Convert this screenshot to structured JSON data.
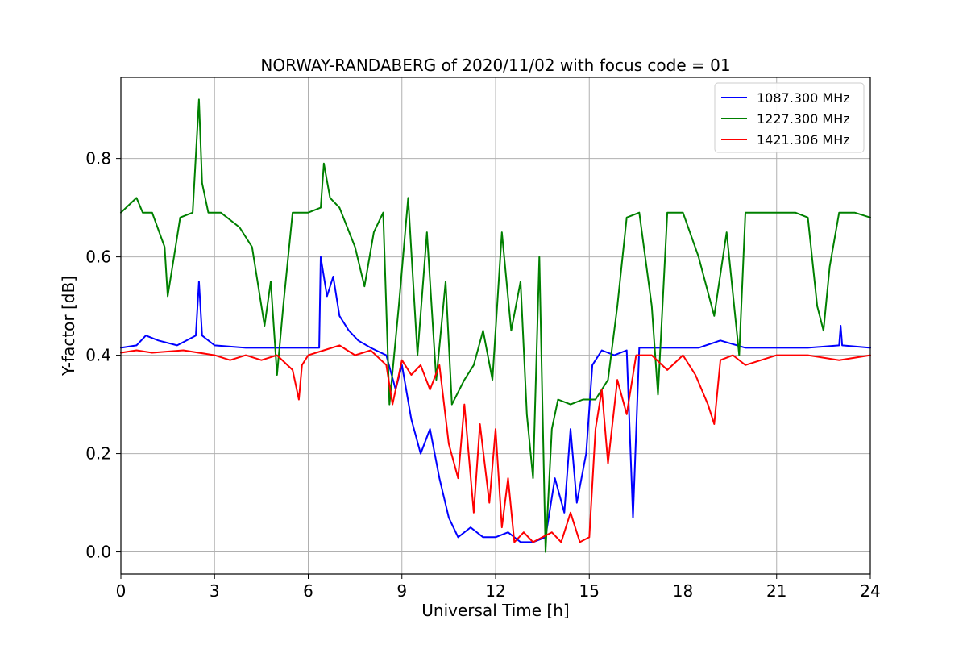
{
  "chart_data": {
    "type": "line",
    "title": "NORWAY-RANDABERG of 2020/11/02 with focus code = 01",
    "xlabel": "Universal Time [h]",
    "ylabel": "Y-factor [dB]",
    "xlim": [
      0,
      24
    ],
    "ylim": [
      -0.045,
      0.965
    ],
    "xticks": [
      0,
      3,
      6,
      9,
      12,
      15,
      18,
      21,
      24
    ],
    "xtick_labels": [
      "0",
      "3",
      "6",
      "9",
      "12",
      "15",
      "18",
      "21",
      "24"
    ],
    "yticks": [
      0.0,
      0.2,
      0.4,
      0.6,
      0.8
    ],
    "ytick_labels": [
      "0.0",
      "0.2",
      "0.4",
      "0.6",
      "0.8"
    ],
    "grid": true,
    "legend_position": "top-right",
    "series": [
      {
        "name": "1087.300 MHz",
        "color": "#0000ff",
        "points": [
          [
            0.0,
            0.415
          ],
          [
            0.5,
            0.42
          ],
          [
            0.8,
            0.44
          ],
          [
            1.2,
            0.43
          ],
          [
            1.8,
            0.42
          ],
          [
            2.4,
            0.44
          ],
          [
            2.5,
            0.55
          ],
          [
            2.6,
            0.44
          ],
          [
            3.0,
            0.42
          ],
          [
            4.0,
            0.415
          ],
          [
            5.0,
            0.415
          ],
          [
            6.0,
            0.415
          ],
          [
            6.35,
            0.415
          ],
          [
            6.4,
            0.6
          ],
          [
            6.6,
            0.52
          ],
          [
            6.8,
            0.56
          ],
          [
            7.0,
            0.48
          ],
          [
            7.3,
            0.45
          ],
          [
            7.6,
            0.43
          ],
          [
            8.0,
            0.415
          ],
          [
            8.5,
            0.4
          ],
          [
            8.8,
            0.33
          ],
          [
            9.0,
            0.38
          ],
          [
            9.3,
            0.27
          ],
          [
            9.6,
            0.2
          ],
          [
            9.9,
            0.25
          ],
          [
            10.2,
            0.15
          ],
          [
            10.5,
            0.07
          ],
          [
            10.8,
            0.03
          ],
          [
            11.2,
            0.05
          ],
          [
            11.6,
            0.03
          ],
          [
            12.0,
            0.03
          ],
          [
            12.4,
            0.04
          ],
          [
            12.8,
            0.02
          ],
          [
            13.2,
            0.02
          ],
          [
            13.6,
            0.03
          ],
          [
            13.9,
            0.15
          ],
          [
            14.2,
            0.08
          ],
          [
            14.4,
            0.25
          ],
          [
            14.6,
            0.1
          ],
          [
            14.9,
            0.2
          ],
          [
            15.1,
            0.38
          ],
          [
            15.4,
            0.41
          ],
          [
            15.8,
            0.4
          ],
          [
            16.2,
            0.41
          ],
          [
            16.4,
            0.07
          ],
          [
            16.6,
            0.415
          ],
          [
            17.5,
            0.415
          ],
          [
            18.5,
            0.415
          ],
          [
            19.2,
            0.43
          ],
          [
            20.0,
            0.415
          ],
          [
            21.0,
            0.415
          ],
          [
            22.0,
            0.415
          ],
          [
            23.0,
            0.42
          ],
          [
            23.05,
            0.46
          ],
          [
            23.1,
            0.42
          ],
          [
            24.0,
            0.415
          ]
        ]
      },
      {
        "name": "1227.300 MHz",
        "color": "#008000",
        "points": [
          [
            0.0,
            0.69
          ],
          [
            0.5,
            0.72
          ],
          [
            0.7,
            0.69
          ],
          [
            1.0,
            0.69
          ],
          [
            1.4,
            0.62
          ],
          [
            1.5,
            0.52
          ],
          [
            1.7,
            0.6
          ],
          [
            1.9,
            0.68
          ],
          [
            2.3,
            0.69
          ],
          [
            2.5,
            0.92
          ],
          [
            2.6,
            0.75
          ],
          [
            2.8,
            0.69
          ],
          [
            3.2,
            0.69
          ],
          [
            3.8,
            0.66
          ],
          [
            4.2,
            0.62
          ],
          [
            4.6,
            0.46
          ],
          [
            4.8,
            0.55
          ],
          [
            5.0,
            0.36
          ],
          [
            5.2,
            0.5
          ],
          [
            5.5,
            0.69
          ],
          [
            6.0,
            0.69
          ],
          [
            6.4,
            0.7
          ],
          [
            6.5,
            0.79
          ],
          [
            6.7,
            0.72
          ],
          [
            7.0,
            0.7
          ],
          [
            7.5,
            0.62
          ],
          [
            7.8,
            0.54
          ],
          [
            8.1,
            0.65
          ],
          [
            8.4,
            0.69
          ],
          [
            8.6,
            0.3
          ],
          [
            8.9,
            0.5
          ],
          [
            9.2,
            0.72
          ],
          [
            9.5,
            0.4
          ],
          [
            9.8,
            0.65
          ],
          [
            10.1,
            0.35
          ],
          [
            10.4,
            0.55
          ],
          [
            10.6,
            0.3
          ],
          [
            11.0,
            0.35
          ],
          [
            11.3,
            0.38
          ],
          [
            11.6,
            0.45
          ],
          [
            11.9,
            0.35
          ],
          [
            12.2,
            0.65
          ],
          [
            12.5,
            0.45
          ],
          [
            12.8,
            0.55
          ],
          [
            13.0,
            0.28
          ],
          [
            13.2,
            0.15
          ],
          [
            13.4,
            0.6
          ],
          [
            13.6,
            0.0
          ],
          [
            13.8,
            0.25
          ],
          [
            14.0,
            0.31
          ],
          [
            14.4,
            0.3
          ],
          [
            14.8,
            0.31
          ],
          [
            15.2,
            0.31
          ],
          [
            15.6,
            0.35
          ],
          [
            15.9,
            0.5
          ],
          [
            16.2,
            0.68
          ],
          [
            16.6,
            0.69
          ],
          [
            17.0,
            0.5
          ],
          [
            17.2,
            0.32
          ],
          [
            17.5,
            0.69
          ],
          [
            18.0,
            0.69
          ],
          [
            18.5,
            0.6
          ],
          [
            19.0,
            0.48
          ],
          [
            19.4,
            0.65
          ],
          [
            19.8,
            0.4
          ],
          [
            20.0,
            0.69
          ],
          [
            20.5,
            0.69
          ],
          [
            21.0,
            0.69
          ],
          [
            21.6,
            0.69
          ],
          [
            22.0,
            0.68
          ],
          [
            22.3,
            0.5
          ],
          [
            22.5,
            0.45
          ],
          [
            22.7,
            0.58
          ],
          [
            23.0,
            0.69
          ],
          [
            23.5,
            0.69
          ],
          [
            24.0,
            0.68
          ]
        ]
      },
      {
        "name": "1421.306 MHz",
        "color": "#ff0000",
        "points": [
          [
            0.0,
            0.405
          ],
          [
            0.5,
            0.41
          ],
          [
            1.0,
            0.405
          ],
          [
            2.0,
            0.41
          ],
          [
            3.0,
            0.4
          ],
          [
            3.5,
            0.39
          ],
          [
            4.0,
            0.4
          ],
          [
            4.5,
            0.39
          ],
          [
            5.0,
            0.4
          ],
          [
            5.5,
            0.37
          ],
          [
            5.7,
            0.31
          ],
          [
            5.8,
            0.38
          ],
          [
            6.0,
            0.4
          ],
          [
            6.5,
            0.41
          ],
          [
            7.0,
            0.42
          ],
          [
            7.5,
            0.4
          ],
          [
            8.0,
            0.41
          ],
          [
            8.5,
            0.38
          ],
          [
            8.7,
            0.3
          ],
          [
            9.0,
            0.39
          ],
          [
            9.3,
            0.36
          ],
          [
            9.6,
            0.38
          ],
          [
            9.9,
            0.33
          ],
          [
            10.2,
            0.38
          ],
          [
            10.5,
            0.22
          ],
          [
            10.8,
            0.15
          ],
          [
            11.0,
            0.3
          ],
          [
            11.3,
            0.08
          ],
          [
            11.5,
            0.26
          ],
          [
            11.8,
            0.1
          ],
          [
            12.0,
            0.25
          ],
          [
            12.2,
            0.05
          ],
          [
            12.4,
            0.15
          ],
          [
            12.6,
            0.02
          ],
          [
            12.9,
            0.04
          ],
          [
            13.2,
            0.02
          ],
          [
            13.5,
            0.03
          ],
          [
            13.8,
            0.04
          ],
          [
            14.1,
            0.02
          ],
          [
            14.4,
            0.08
          ],
          [
            14.7,
            0.02
          ],
          [
            15.0,
            0.03
          ],
          [
            15.2,
            0.25
          ],
          [
            15.4,
            0.33
          ],
          [
            15.6,
            0.18
          ],
          [
            15.9,
            0.35
          ],
          [
            16.2,
            0.28
          ],
          [
            16.5,
            0.4
          ],
          [
            17.0,
            0.4
          ],
          [
            17.5,
            0.37
          ],
          [
            18.0,
            0.4
          ],
          [
            18.4,
            0.36
          ],
          [
            18.8,
            0.3
          ],
          [
            19.0,
            0.26
          ],
          [
            19.2,
            0.39
          ],
          [
            19.6,
            0.4
          ],
          [
            20.0,
            0.38
          ],
          [
            20.5,
            0.39
          ],
          [
            21.0,
            0.4
          ],
          [
            22.0,
            0.4
          ],
          [
            23.0,
            0.39
          ],
          [
            24.0,
            0.4
          ]
        ]
      }
    ]
  }
}
